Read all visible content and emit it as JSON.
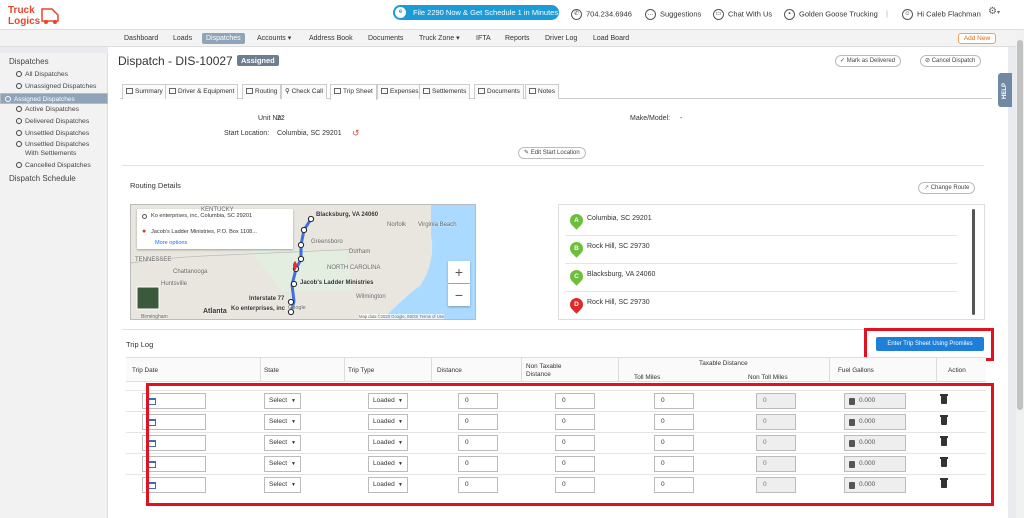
{
  "header": {
    "logo_line1": "Truck",
    "logo_line2": "Logics",
    "promo": "File 2290 Now & Get Schedule 1 in Minutes",
    "promo_badge": "e",
    "phone": "704.234.6946",
    "suggestions": "Suggestions",
    "chat": "Chat With Us",
    "company": "Golden Goose Trucking",
    "user": "Hi Caleb Flachman"
  },
  "nav": {
    "items": [
      "Dashboard",
      "Loads",
      "Dispatches",
      "Accounts ▾",
      "Address Book",
      "Documents",
      "Truck Zone ▾",
      "IFTA",
      "Reports",
      "Driver Log",
      "Load Board"
    ],
    "active": "Dispatches",
    "add_new": "Add New"
  },
  "sidebar": {
    "section1": "Dispatches",
    "items": [
      "All Dispatches",
      "Unassigned Dispatches",
      "Assigned Dispatches",
      "Active Dispatches",
      "Delivered Dispatches",
      "Unsettled Dispatches",
      "Unsettled Dispatches",
      "With Settlements",
      "Cancelled Dispatches"
    ],
    "selected": "Assigned Dispatches",
    "section2": "Dispatch Schedule"
  },
  "page": {
    "title": "Dispatch - DIS-10027",
    "status": "Assigned",
    "mark_delivered": "Mark as Delivered",
    "cancel_dispatch": "Cancel Dispatch",
    "help": "HELP"
  },
  "tabs": [
    "Summary",
    "Driver & Equipment",
    "Routing",
    "Check Call",
    "Trip Sheet",
    "Expenses",
    "Settlements",
    "Documents",
    "Notes"
  ],
  "active_tab": "Trip Sheet",
  "trip": {
    "unit_label": "Unit No:",
    "unit_value": "22",
    "make_label": "Make/Model:",
    "make_value": "-",
    "start_label": "Start Location:",
    "start_value": "Columbia, SC 29201",
    "edit_start": "Edit Start Location"
  },
  "routing": {
    "title": "Routing Details",
    "change_route": "Change Route",
    "map_from": "Ko enterprises, inc, Columbia, SC 29201",
    "map_to": "Jacob's Ladder Ministries, P.O. Box 1108...",
    "more_options": "More options",
    "map_labels": {
      "kentucky": "KENTUCKY",
      "blacksburg": "Blacksburg, VA 24060",
      "norfolk": "Norfolk",
      "virginia_beach": "Virginia Beach",
      "greensboro": "Greensboro",
      "durham": "Durham",
      "tennessee": "TENNESSEE",
      "chattanooga": "Chattanooga",
      "north_carolina": "NORTH CAROLINA",
      "huntsville": "Huntsville",
      "jacobs": "Jacob's Ladder Ministries",
      "wilmington": "Wilmington",
      "interstate": "Interstate 77",
      "atlanta": "Atlanta",
      "ko": "Ko enterprises, inc",
      "birmingham": "Birmingham",
      "google": "Google",
      "attribution": "Map data ©2020 Google, INEGI  Terms of Use"
    },
    "stops": [
      {
        "letter": "A",
        "name": "Columbia, SC 29201",
        "color": "#6cbf3a"
      },
      {
        "letter": "B",
        "name": "Rock Hill, SC 29730",
        "color": "#6cbf3a"
      },
      {
        "letter": "C",
        "name": "Blacksburg, VA 24060",
        "color": "#6cbf3a"
      },
      {
        "letter": "D",
        "name": "Rock Hill, SC 29730",
        "color": "#e02a2a"
      }
    ]
  },
  "triplog": {
    "title": "Trip Log",
    "enter_button": "Enter Trip Sheet Using Promiles",
    "headers": {
      "date": "Trip Date",
      "state": "State",
      "type": "Trip Type",
      "distance": "Distance",
      "nontax_1": "Non Taxable",
      "nontax_2": "Distance",
      "taxable": "Taxable Distance",
      "toll": "Toll Miles",
      "nontoll": "Non Toll Miles",
      "fuel": "Fuel Gallons",
      "action": "Action"
    },
    "rows": [
      {
        "state": "Select",
        "type": "Loaded",
        "distance": "0",
        "nontax": "0",
        "toll": "0",
        "nontoll": "0",
        "fuel": "0.000"
      },
      {
        "state": "Select",
        "type": "Loaded",
        "distance": "0",
        "nontax": "0",
        "toll": "0",
        "nontoll": "0",
        "fuel": "0.000"
      },
      {
        "state": "Select",
        "type": "Loaded",
        "distance": "0",
        "nontax": "0",
        "toll": "0",
        "nontoll": "0",
        "fuel": "0.000"
      },
      {
        "state": "Select",
        "type": "Loaded",
        "distance": "0",
        "nontax": "0",
        "toll": "0",
        "nontoll": "0",
        "fuel": "0.000"
      },
      {
        "state": "Select",
        "type": "Loaded",
        "distance": "0",
        "nontax": "0",
        "toll": "0",
        "nontoll": "0",
        "fuel": "0.000"
      }
    ]
  },
  "colors": {
    "accent": "#1e7fd8",
    "highlight": "#e0121f",
    "nav_active": "#8fa4b8"
  }
}
